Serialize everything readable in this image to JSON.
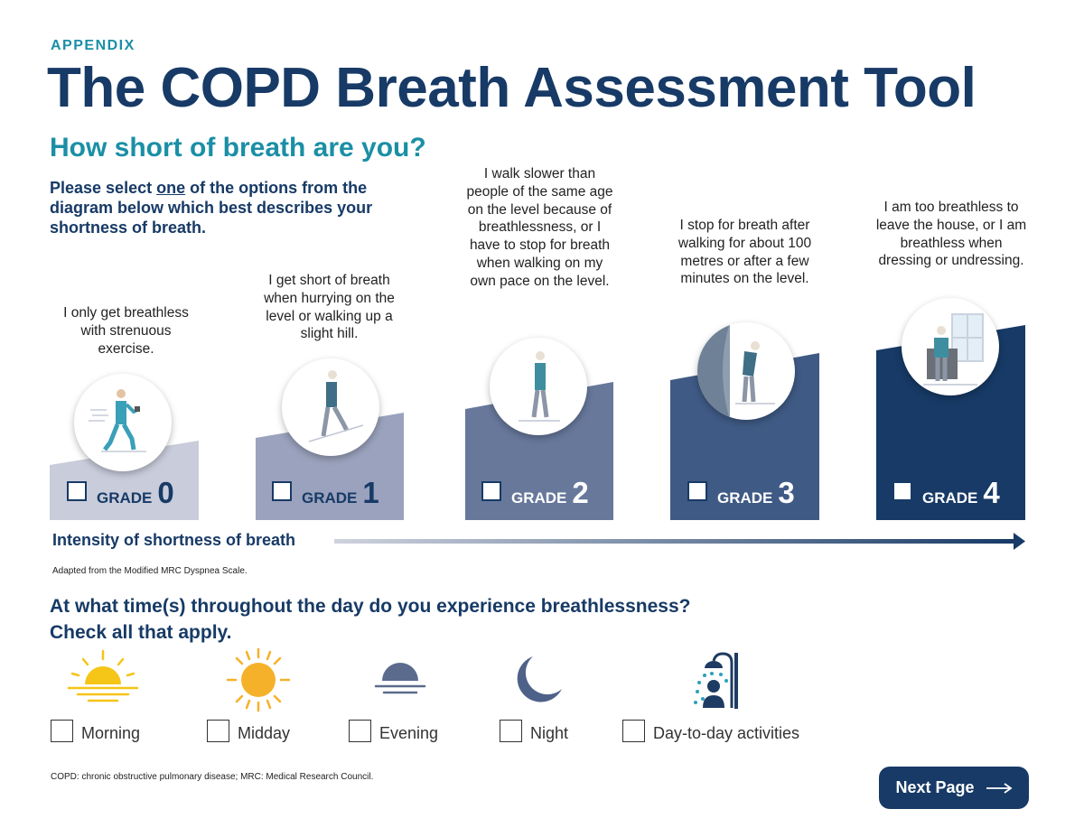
{
  "header": {
    "kicker": "APPENDIX",
    "title": "The COPD Breath Assessment Tool",
    "subtitle": "How short of breath are you?",
    "instruction_pre": "Please select ",
    "instruction_em": "one",
    "instruction_post": " of the options from the diagram below which best describes your shortness of breath."
  },
  "grades": [
    {
      "word": "GRADE",
      "number": "0",
      "description": "I only get breathless with strenuous exercise.",
      "checked": false,
      "color": "#c9ccdb",
      "label_color": "#173a66"
    },
    {
      "word": "GRADE",
      "number": "1",
      "description": "I get short of breath when hurrying on the level or walking up a slight hill.",
      "checked": false,
      "color": "#9aa2bd",
      "label_color": "#173a66"
    },
    {
      "word": "GRADE",
      "number": "2",
      "description": "I walk slower than people of the same age on the level because of breathlessness, or I have to stop for breath when walking on my own pace on the level.",
      "checked": false,
      "color": "#67789b",
      "label_color": "#ffffff"
    },
    {
      "word": "GRADE",
      "number": "3",
      "description": "I stop for breath after walking for about 100 metres or after a few minutes on the level.",
      "checked": false,
      "color": "#3f5a85",
      "label_color": "#ffffff"
    },
    {
      "word": "GRADE",
      "number": "4",
      "description": "I am too breathless to leave the house, or I am breathless when dressing or undressing.",
      "checked": false,
      "color": "#173a66",
      "label_color": "#ffffff"
    }
  ],
  "intensity_label": "Intensity of shortness of breath",
  "adapted_note": "Adapted from the Modified MRC Dyspnea Scale.",
  "time_question": {
    "line1": "At what time(s) throughout the day do you experience breathlessness?",
    "line2": "Check all that apply."
  },
  "times": [
    {
      "label": "Morning",
      "icon": "sunrise-icon",
      "checked": false
    },
    {
      "label": "Midday",
      "icon": "sun-icon",
      "checked": false
    },
    {
      "label": "Evening",
      "icon": "sunset-icon",
      "checked": false
    },
    {
      "label": "Night",
      "icon": "moon-icon",
      "checked": false
    },
    {
      "label": "Day-to-day activities",
      "icon": "shower-icon",
      "checked": false
    }
  ],
  "footnote": "COPD: chronic obstructive pulmonary disease; MRC: Medical Research Council.",
  "next_button": {
    "label": "Next Page"
  },
  "colors": {
    "navy": "#173a66",
    "teal": "#1a8fa6",
    "sun_yellow": "#f5c518",
    "sun_orange": "#f6b12a",
    "slate": "#5b6b8e"
  }
}
